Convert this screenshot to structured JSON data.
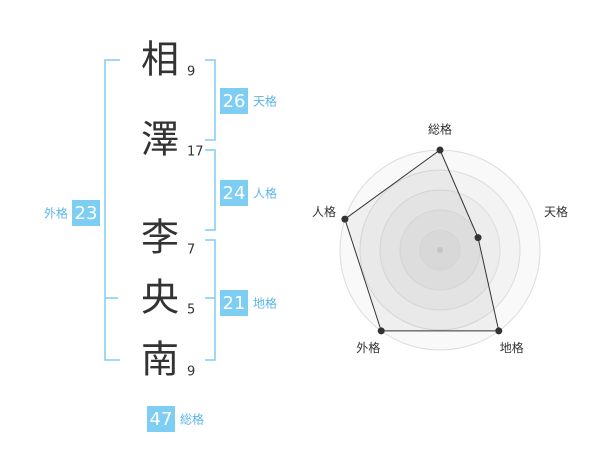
{
  "name": [
    {
      "char": "相",
      "strokes": 9
    },
    {
      "char": "澤",
      "strokes": 17
    },
    {
      "char": "李",
      "strokes": 7
    },
    {
      "char": "央",
      "strokes": 5
    },
    {
      "char": "南",
      "strokes": 9
    }
  ],
  "kaku": {
    "tenkaku": {
      "value": 26,
      "label": "天格"
    },
    "jinkaku": {
      "value": 24,
      "label": "人格"
    },
    "chikaku": {
      "value": 21,
      "label": "地格"
    },
    "gaikaku": {
      "value": 23,
      "label": "外格"
    },
    "soukaku": {
      "value": 47,
      "label": "総格"
    }
  },
  "chart_data": {
    "type": "radar",
    "categories": [
      "総格",
      "天格",
      "地格",
      "外格",
      "人格"
    ],
    "values": [
      5,
      2,
      5,
      5,
      5
    ],
    "rlim": [
      0,
      5
    ],
    "rticks": [
      1,
      2,
      3,
      4,
      5
    ]
  }
}
